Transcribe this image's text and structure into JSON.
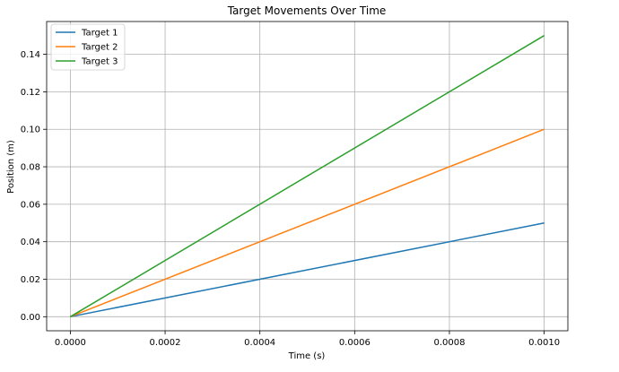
{
  "chart_data": {
    "type": "line",
    "title": "Target Movements Over Time",
    "xlabel": "Time (s)",
    "ylabel": "Position (m)",
    "xlim": [
      -5e-05,
      0.00105
    ],
    "ylim": [
      -0.0075,
      0.1575
    ],
    "xticks": [
      0.0,
      0.0002,
      0.0004,
      0.0006,
      0.0008,
      0.001
    ],
    "xtick_labels": [
      "0.0000",
      "0.0002",
      "0.0004",
      "0.0006",
      "0.0008",
      "0.0010"
    ],
    "yticks": [
      0.0,
      0.02,
      0.04,
      0.06,
      0.08,
      0.1,
      0.12,
      0.14
    ],
    "ytick_labels": [
      "0.00",
      "0.02",
      "0.04",
      "0.06",
      "0.08",
      "0.10",
      "0.12",
      "0.14"
    ],
    "grid": true,
    "legend_position": "top-left",
    "series": [
      {
        "name": "Target 1",
        "color": "#1f77b4",
        "x": [
          0.0,
          0.001
        ],
        "y": [
          0.0,
          0.05
        ]
      },
      {
        "name": "Target 2",
        "color": "#ff7f0e",
        "x": [
          0.0,
          0.001
        ],
        "y": [
          0.0,
          0.1
        ]
      },
      {
        "name": "Target 3",
        "color": "#2ca02c",
        "x": [
          0.0,
          0.001
        ],
        "y": [
          0.0,
          0.15
        ]
      }
    ]
  }
}
